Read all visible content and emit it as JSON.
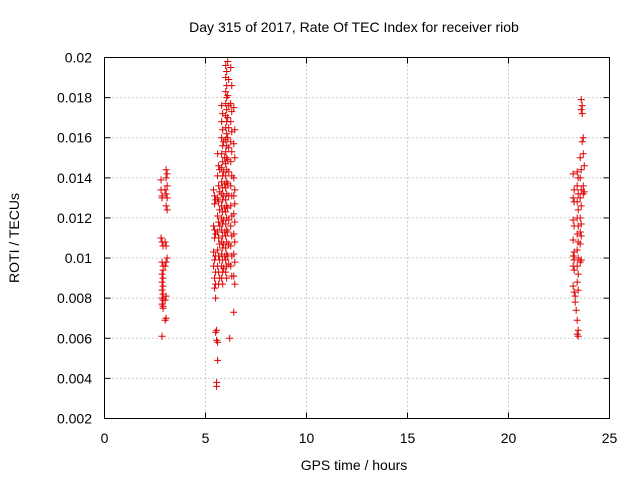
{
  "chart_data": {
    "type": "scatter",
    "title": "Day 315 of 2017, Rate Of TEC Index for receiver riob",
    "xlabel": "GPS time / hours",
    "ylabel": "ROTI / TECUs",
    "xlim": [
      0,
      25
    ],
    "ylim": [
      0.002,
      0.02
    ],
    "xticks": [
      0,
      5,
      10,
      15,
      20,
      25
    ],
    "xtick_labels": [
      "0",
      "5",
      "10",
      "15",
      "20",
      "25"
    ],
    "yticks": [
      0.002,
      0.004,
      0.006,
      0.008,
      0.01,
      0.012,
      0.014,
      0.016,
      0.018,
      0.02
    ],
    "ytick_labels": [
      "0.002",
      "0.004",
      "0.006",
      "0.008",
      "0.01",
      "0.012",
      "0.014",
      "0.016",
      "0.018",
      "0.02"
    ],
    "grid": true,
    "marker": "+",
    "color": "#dd0000",
    "series": [
      {
        "points": [
          [
            2.8,
            0.0139
          ],
          [
            2.8,
            0.0134
          ],
          [
            2.85,
            0.0131
          ],
          [
            2.85,
            0.013
          ],
          [
            2.8,
            0.011
          ],
          [
            2.85,
            0.0108
          ],
          [
            2.9,
            0.0106
          ],
          [
            2.85,
            0.0098
          ],
          [
            2.9,
            0.0096
          ],
          [
            2.9,
            0.0094
          ],
          [
            2.85,
            0.0092
          ],
          [
            2.9,
            0.009
          ],
          [
            2.85,
            0.0088
          ],
          [
            2.9,
            0.0086
          ],
          [
            2.85,
            0.0084
          ],
          [
            2.9,
            0.0082
          ],
          [
            2.85,
            0.008
          ],
          [
            2.9,
            0.0079
          ],
          [
            2.85,
            0.0077
          ],
          [
            2.9,
            0.0076
          ],
          [
            2.9,
            0.0075
          ],
          [
            2.85,
            0.0061
          ],
          [
            3.05,
            0.0144
          ],
          [
            3.1,
            0.0142
          ],
          [
            3.05,
            0.014
          ],
          [
            3.1,
            0.0136
          ],
          [
            3.0,
            0.0134
          ],
          [
            3.05,
            0.0132
          ],
          [
            3.1,
            0.013
          ],
          [
            3.05,
            0.0126
          ],
          [
            3.1,
            0.0124
          ],
          [
            3.0,
            0.0108
          ],
          [
            3.05,
            0.0106
          ],
          [
            3.1,
            0.01
          ],
          [
            3.05,
            0.0098
          ],
          [
            3.0,
            0.0096
          ],
          [
            3.05,
            0.0081
          ],
          [
            3.0,
            0.0079
          ],
          [
            3.05,
            0.007
          ],
          [
            3.0,
            0.0069
          ],
          [
            5.4,
            0.0134
          ],
          [
            5.45,
            0.0131
          ],
          [
            5.5,
            0.0129
          ],
          [
            5.45,
            0.0127
          ],
          [
            5.4,
            0.0116
          ],
          [
            5.45,
            0.0114
          ],
          [
            5.5,
            0.0112
          ],
          [
            5.45,
            0.011
          ],
          [
            5.4,
            0.0103
          ],
          [
            5.5,
            0.0101
          ],
          [
            5.45,
            0.0099
          ],
          [
            5.4,
            0.0096
          ],
          [
            5.5,
            0.0093
          ],
          [
            5.45,
            0.009
          ],
          [
            5.5,
            0.0087
          ],
          [
            5.45,
            0.0085
          ],
          [
            5.5,
            0.008
          ],
          [
            5.55,
            0.0064
          ],
          [
            5.5,
            0.0063
          ],
          [
            5.55,
            0.0059
          ],
          [
            5.6,
            0.0058
          ],
          [
            5.6,
            0.0049
          ],
          [
            5.55,
            0.0038
          ],
          [
            5.55,
            0.0036
          ],
          [
            5.6,
            0.0152
          ],
          [
            5.65,
            0.0146
          ],
          [
            5.7,
            0.0144
          ],
          [
            5.6,
            0.0141
          ],
          [
            5.65,
            0.0136
          ],
          [
            5.7,
            0.0133
          ],
          [
            5.6,
            0.013
          ],
          [
            5.65,
            0.0128
          ],
          [
            5.7,
            0.0124
          ],
          [
            5.6,
            0.0121
          ],
          [
            5.65,
            0.0118
          ],
          [
            5.7,
            0.0116
          ],
          [
            5.6,
            0.0113
          ],
          [
            5.65,
            0.011
          ],
          [
            5.7,
            0.0107
          ],
          [
            5.6,
            0.0104
          ],
          [
            5.65,
            0.0101
          ],
          [
            5.7,
            0.0099
          ],
          [
            5.6,
            0.0096
          ],
          [
            5.65,
            0.0093
          ],
          [
            5.7,
            0.009
          ],
          [
            5.65,
            0.0087
          ],
          [
            5.8,
            0.0176
          ],
          [
            5.85,
            0.0172
          ],
          [
            5.8,
            0.0168
          ],
          [
            5.85,
            0.0164
          ],
          [
            5.8,
            0.016
          ],
          [
            5.85,
            0.0156
          ],
          [
            5.8,
            0.0152
          ],
          [
            5.85,
            0.0148
          ],
          [
            5.8,
            0.0145
          ],
          [
            5.85,
            0.0141
          ],
          [
            5.8,
            0.0138
          ],
          [
            5.85,
            0.0135
          ],
          [
            5.8,
            0.0132
          ],
          [
            5.85,
            0.0129
          ],
          [
            5.8,
            0.0126
          ],
          [
            5.85,
            0.0123
          ],
          [
            5.8,
            0.012
          ],
          [
            5.85,
            0.0117
          ],
          [
            5.8,
            0.0114
          ],
          [
            5.85,
            0.0111
          ],
          [
            5.8,
            0.0108
          ],
          [
            5.85,
            0.0105
          ],
          [
            5.8,
            0.0102
          ],
          [
            5.85,
            0.0099
          ],
          [
            5.8,
            0.0096
          ],
          [
            5.85,
            0.0093
          ],
          [
            5.8,
            0.009
          ],
          [
            5.85,
            0.0087
          ],
          [
            5.9,
            0.0158
          ],
          [
            5.95,
            0.015
          ],
          [
            5.9,
            0.0143
          ],
          [
            5.95,
            0.0137
          ],
          [
            5.9,
            0.0131
          ],
          [
            5.95,
            0.0125
          ],
          [
            5.9,
            0.0119
          ],
          [
            5.95,
            0.0113
          ],
          [
            5.9,
            0.0107
          ],
          [
            5.95,
            0.0101
          ],
          [
            5.9,
            0.0095
          ],
          [
            6.0,
            0.0196
          ],
          [
            6.05,
            0.0193
          ],
          [
            6.0,
            0.019
          ],
          [
            6.05,
            0.0186
          ],
          [
            6.0,
            0.0183
          ],
          [
            6.05,
            0.018
          ],
          [
            6.0,
            0.0177
          ],
          [
            6.05,
            0.0174
          ],
          [
            6.0,
            0.0171
          ],
          [
            6.05,
            0.0168
          ],
          [
            6.0,
            0.0165
          ],
          [
            6.05,
            0.0162
          ],
          [
            6.0,
            0.0159
          ],
          [
            6.05,
            0.0156
          ],
          [
            6.0,
            0.0153
          ],
          [
            6.05,
            0.015
          ],
          [
            6.0,
            0.0147
          ],
          [
            6.05,
            0.0144
          ],
          [
            6.0,
            0.0141
          ],
          [
            6.05,
            0.0138
          ],
          [
            6.0,
            0.0135
          ],
          [
            6.05,
            0.0132
          ],
          [
            6.0,
            0.0129
          ],
          [
            6.05,
            0.0126
          ],
          [
            6.0,
            0.0123
          ],
          [
            6.05,
            0.012
          ],
          [
            6.0,
            0.0117
          ],
          [
            6.05,
            0.0114
          ],
          [
            6.0,
            0.0111
          ],
          [
            6.05,
            0.0108
          ],
          [
            6.0,
            0.0105
          ],
          [
            6.05,
            0.0102
          ],
          [
            6.0,
            0.0099
          ],
          [
            6.05,
            0.0096
          ],
          [
            6.0,
            0.0093
          ],
          [
            6.05,
            0.009
          ],
          [
            6.1,
            0.0198
          ],
          [
            6.15,
            0.0189
          ],
          [
            6.1,
            0.0181
          ],
          [
            6.15,
            0.0176
          ],
          [
            6.1,
            0.017
          ],
          [
            6.15,
            0.0165
          ],
          [
            6.1,
            0.016
          ],
          [
            6.15,
            0.0155
          ],
          [
            6.1,
            0.0149
          ],
          [
            6.15,
            0.0143
          ],
          [
            6.1,
            0.0137
          ],
          [
            6.15,
            0.0131
          ],
          [
            6.1,
            0.0125
          ],
          [
            6.15,
            0.0119
          ],
          [
            6.1,
            0.0113
          ],
          [
            6.15,
            0.0107
          ],
          [
            6.1,
            0.0101
          ],
          [
            6.15,
            0.0097
          ],
          [
            6.2,
            0.006
          ],
          [
            6.25,
            0.0195
          ],
          [
            6.3,
            0.0186
          ],
          [
            6.25,
            0.0177
          ],
          [
            6.3,
            0.0173
          ],
          [
            6.25,
            0.0168
          ],
          [
            6.3,
            0.0163
          ],
          [
            6.25,
            0.0158
          ],
          [
            6.3,
            0.0153
          ],
          [
            6.25,
            0.0148
          ],
          [
            6.3,
            0.0141
          ],
          [
            6.25,
            0.0136
          ],
          [
            6.3,
            0.0131
          ],
          [
            6.25,
            0.0126
          ],
          [
            6.3,
            0.0121
          ],
          [
            6.25,
            0.0116
          ],
          [
            6.3,
            0.0111
          ],
          [
            6.25,
            0.0106
          ],
          [
            6.3,
            0.0101
          ],
          [
            6.25,
            0.0096
          ],
          [
            6.3,
            0.0091
          ],
          [
            6.4,
            0.0175
          ],
          [
            6.45,
            0.0164
          ],
          [
            6.4,
            0.0157
          ],
          [
            6.45,
            0.015
          ],
          [
            6.4,
            0.014
          ],
          [
            6.45,
            0.0134
          ],
          [
            6.4,
            0.0131
          ],
          [
            6.45,
            0.0127
          ],
          [
            6.4,
            0.0122
          ],
          [
            6.45,
            0.0118
          ],
          [
            6.4,
            0.0112
          ],
          [
            6.45,
            0.0108
          ],
          [
            6.4,
            0.0102
          ],
          [
            6.45,
            0.0098
          ],
          [
            6.4,
            0.0091
          ],
          [
            6.45,
            0.0087
          ],
          [
            6.4,
            0.0073
          ],
          [
            23.2,
            0.0142
          ],
          [
            23.25,
            0.0134
          ],
          [
            23.2,
            0.013
          ],
          [
            23.25,
            0.0128
          ],
          [
            23.2,
            0.0119
          ],
          [
            23.25,
            0.0116
          ],
          [
            23.2,
            0.0109
          ],
          [
            23.25,
            0.0103
          ],
          [
            23.2,
            0.0101
          ],
          [
            23.25,
            0.0099
          ],
          [
            23.2,
            0.0096
          ],
          [
            23.25,
            0.0094
          ],
          [
            23.2,
            0.0086
          ],
          [
            23.25,
            0.0083
          ],
          [
            23.3,
            0.0081
          ],
          [
            23.3,
            0.0078
          ],
          [
            23.35,
            0.0074
          ],
          [
            23.4,
            0.0143
          ],
          [
            23.45,
            0.014
          ],
          [
            23.4,
            0.0136
          ],
          [
            23.45,
            0.0132
          ],
          [
            23.4,
            0.0128
          ],
          [
            23.45,
            0.0124
          ],
          [
            23.4,
            0.012
          ],
          [
            23.45,
            0.0116
          ],
          [
            23.4,
            0.0112
          ],
          [
            23.45,
            0.0108
          ],
          [
            23.4,
            0.0104
          ],
          [
            23.45,
            0.01
          ],
          [
            23.4,
            0.0096
          ],
          [
            23.45,
            0.0092
          ],
          [
            23.4,
            0.0088
          ],
          [
            23.45,
            0.0084
          ],
          [
            23.4,
            0.0069
          ],
          [
            23.45,
            0.0064
          ],
          [
            23.4,
            0.0062
          ],
          [
            23.45,
            0.0061
          ],
          [
            23.55,
            0.015
          ],
          [
            23.6,
            0.0144
          ],
          [
            23.55,
            0.014
          ],
          [
            23.6,
            0.0134
          ],
          [
            23.55,
            0.013
          ],
          [
            23.6,
            0.0126
          ],
          [
            23.55,
            0.012
          ],
          [
            23.6,
            0.0117
          ],
          [
            23.55,
            0.0113
          ],
          [
            23.6,
            0.0111
          ],
          [
            23.55,
            0.0107
          ],
          [
            23.6,
            0.0099
          ],
          [
            23.55,
            0.0098
          ],
          [
            23.6,
            0.0179
          ],
          [
            23.65,
            0.0176
          ],
          [
            23.6,
            0.0174
          ],
          [
            23.65,
            0.0172
          ],
          [
            23.7,
            0.016
          ],
          [
            23.65,
            0.0158
          ],
          [
            23.7,
            0.0152
          ],
          [
            23.75,
            0.0146
          ],
          [
            23.7,
            0.0136
          ],
          [
            23.75,
            0.0133
          ],
          [
            23.7,
            0.0132
          ]
        ]
      }
    ]
  }
}
